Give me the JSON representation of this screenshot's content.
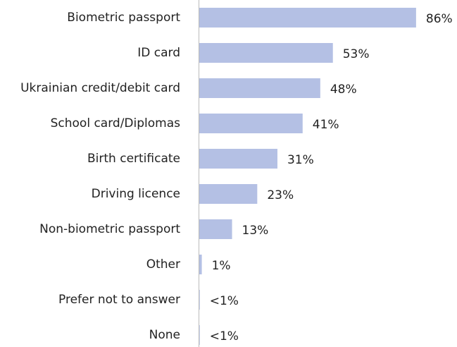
{
  "chart_data": {
    "type": "hbar",
    "categories": [
      "Biometric passport",
      "ID card",
      "Ukrainian credit/debit card",
      "School card/Diplomas",
      "Birth certificate",
      "Driving licence",
      "Non-biometric passport",
      "Other",
      "Prefer not to answer",
      "None"
    ],
    "values": [
      86,
      53,
      48,
      41,
      31,
      23,
      13,
      1,
      0.2,
      0.2
    ],
    "value_labels": [
      "86%",
      "53%",
      "48%",
      "41%",
      "31%",
      "23%",
      "13%",
      "1%",
      "<1%",
      "<1%"
    ],
    "color": "#b4c0e4",
    "xlim": [
      0,
      100
    ]
  }
}
